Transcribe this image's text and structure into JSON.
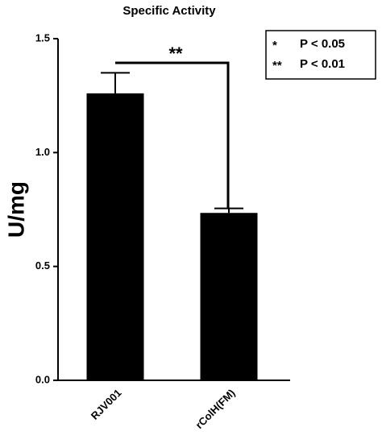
{
  "chart_data": {
    "type": "bar",
    "title": "Specific Activity",
    "y_label": "U/mg",
    "categories": [
      "RJV001",
      "rColH(FM)"
    ],
    "values": [
      1.26,
      0.735
    ],
    "errors": [
      0.09,
      0.02
    ],
    "color": "#000000",
    "ylim": [
      0,
      1.5
    ],
    "yticks": [
      {
        "value": 0,
        "label": "0.0"
      },
      0.5,
      {
        "value": 1,
        "label": "1.0"
      },
      1.5
    ],
    "annotation": "**",
    "legend_items": [
      {
        "symbol": "*",
        "text": "P < 0.05"
      },
      {
        "symbol": "**",
        "text": "P < 0.01"
      }
    ]
  }
}
